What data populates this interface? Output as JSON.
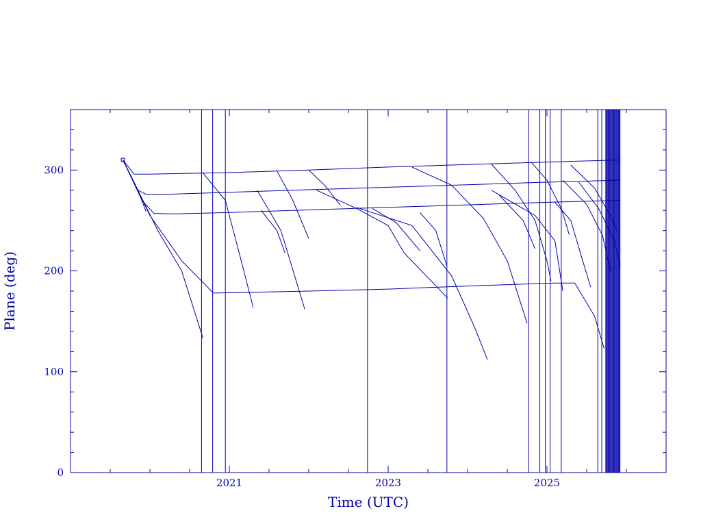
{
  "chart_data": {
    "type": "line",
    "title": "",
    "xlabel": "Time (UTC)",
    "ylabel": "Plane (deg)",
    "xlim": [
      2019.0,
      2026.5
    ],
    "ylim": [
      0,
      360
    ],
    "x_ticks": [
      {
        "value": 2021,
        "label": "2021"
      },
      {
        "value": 2023,
        "label": "2023"
      },
      {
        "value": 2025,
        "label": "2025"
      }
    ],
    "y_ticks": [
      {
        "value": 0,
        "label": "0"
      },
      {
        "value": 100,
        "label": "100"
      },
      {
        "value": 200,
        "label": "200"
      },
      {
        "value": 300,
        "label": "300"
      }
    ],
    "grid": false,
    "legend": "none",
    "color": "#0000aa",
    "vertical_lines": [
      2020.65,
      2020.79,
      2020.95,
      2022.74,
      2023.74,
      2024.77,
      2024.91,
      2024.98,
      2025.04,
      2025.18,
      2025.64,
      2025.69,
      2025.74,
      2025.75,
      2025.76,
      2025.77,
      2025.78,
      2025.79,
      2025.8,
      2025.81,
      2025.82,
      2025.83,
      2025.84,
      2025.85,
      2025.86,
      2025.87,
      2025.88,
      2025.89,
      2025.9,
      2025.91,
      2025.92
    ],
    "series": [
      {
        "points": [
          [
            2019.66,
            310
          ],
          [
            2019.8,
            296
          ],
          [
            2020.0,
            296
          ],
          [
            2021.0,
            297.5
          ],
          [
            2022.0,
            300
          ],
          [
            2023.0,
            303
          ],
          [
            2024.0,
            305.5
          ],
          [
            2025.0,
            308
          ],
          [
            2025.92,
            310
          ]
        ]
      },
      {
        "points": [
          [
            2019.66,
            310
          ],
          [
            2019.85,
            280
          ],
          [
            2019.95,
            276
          ],
          [
            2020.2,
            276
          ],
          [
            2021.0,
            278
          ],
          [
            2022.0,
            280.5
          ],
          [
            2023.0,
            283
          ],
          [
            2024.0,
            285.5
          ],
          [
            2025.0,
            288
          ],
          [
            2025.92,
            290
          ]
        ]
      },
      {
        "points": [
          [
            2019.66,
            310
          ],
          [
            2019.9,
            270
          ],
          [
            2020.05,
            257
          ],
          [
            2020.3,
            256.5
          ],
          [
            2021.0,
            258
          ],
          [
            2022.0,
            260.5
          ],
          [
            2023.0,
            263
          ],
          [
            2024.0,
            265.5
          ],
          [
            2025.0,
            268
          ],
          [
            2025.92,
            270
          ]
        ]
      },
      {
        "points": [
          [
            2019.66,
            310
          ],
          [
            2020.0,
            255
          ],
          [
            2020.4,
            210
          ],
          [
            2020.8,
            178
          ],
          [
            2022.0,
            180
          ],
          [
            2023.0,
            182
          ],
          [
            2024.0,
            185
          ],
          [
            2025.1,
            188
          ],
          [
            2025.35,
            188
          ],
          [
            2025.6,
            155
          ],
          [
            2025.72,
            123
          ]
        ]
      },
      {
        "points": [
          [
            2019.66,
            310
          ],
          [
            2019.85,
            280
          ],
          [
            2019.95,
            259
          ]
        ]
      },
      {
        "points": [
          [
            2019.66,
            310
          ],
          [
            2020.1,
            240
          ],
          [
            2020.4,
            200
          ],
          [
            2020.67,
            133
          ]
        ]
      },
      {
        "points": [
          [
            2020.67,
            297
          ],
          [
            2020.95,
            270
          ],
          [
            2021.15,
            210
          ],
          [
            2021.3,
            164
          ]
        ]
      },
      {
        "points": [
          [
            2021.35,
            280
          ],
          [
            2021.65,
            240
          ],
          [
            2021.95,
            162
          ]
        ]
      },
      {
        "points": [
          [
            2021.6,
            299
          ],
          [
            2021.8,
            270
          ],
          [
            2022.0,
            232
          ]
        ]
      },
      {
        "points": [
          [
            2021.4,
            260
          ],
          [
            2021.6,
            240
          ],
          [
            2021.7,
            218
          ]
        ]
      },
      {
        "points": [
          [
            2022.0,
            300
          ],
          [
            2022.2,
            285
          ],
          [
            2022.4,
            265
          ]
        ]
      },
      {
        "points": [
          [
            2022.1,
            280
          ],
          [
            2022.6,
            262
          ],
          [
            2023.0,
            245
          ],
          [
            2023.2,
            218
          ],
          [
            2023.75,
            173
          ]
        ]
      },
      {
        "points": [
          [
            2023.3,
            303
          ],
          [
            2023.8,
            285
          ],
          [
            2024.2,
            252
          ],
          [
            2024.5,
            210
          ],
          [
            2024.75,
            148
          ]
        ]
      },
      {
        "points": [
          [
            2022.6,
            263
          ],
          [
            2023.3,
            245
          ],
          [
            2023.8,
            195
          ],
          [
            2024.1,
            142
          ],
          [
            2024.25,
            112
          ]
        ]
      },
      {
        "points": [
          [
            2024.3,
            306
          ],
          [
            2024.6,
            280
          ],
          [
            2024.85,
            250
          ],
          [
            2025.0,
            210
          ],
          [
            2025.05,
            190
          ]
        ]
      },
      {
        "points": [
          [
            2024.3,
            280
          ],
          [
            2024.85,
            255
          ],
          [
            2025.1,
            230
          ],
          [
            2025.2,
            180
          ]
        ]
      },
      {
        "points": [
          [
            2024.8,
            308
          ],
          [
            2025.0,
            290
          ],
          [
            2025.18,
            262
          ],
          [
            2025.28,
            236
          ]
        ]
      },
      {
        "points": [
          [
            2025.1,
            268
          ],
          [
            2025.3,
            250
          ],
          [
            2025.45,
            210
          ],
          [
            2025.55,
            184
          ]
        ]
      },
      {
        "points": [
          [
            2025.3,
            305
          ],
          [
            2025.6,
            282
          ],
          [
            2025.8,
            255
          ],
          [
            2025.88,
            240
          ]
        ]
      },
      {
        "points": [
          [
            2025.4,
            288
          ],
          [
            2025.65,
            262
          ],
          [
            2025.85,
            230
          ],
          [
            2025.92,
            205
          ]
        ]
      },
      {
        "points": [
          [
            2025.2,
            290
          ],
          [
            2025.5,
            266
          ],
          [
            2025.7,
            235
          ],
          [
            2025.8,
            200
          ]
        ]
      },
      {
        "points": [
          [
            2023.4,
            258
          ],
          [
            2023.6,
            240
          ],
          [
            2023.74,
            205
          ]
        ]
      },
      {
        "points": [
          [
            2022.8,
            262
          ],
          [
            2023.1,
            248
          ],
          [
            2023.4,
            220
          ]
        ]
      },
      {
        "points": [
          [
            2024.4,
            275
          ],
          [
            2024.7,
            250
          ],
          [
            2024.85,
            222
          ]
        ]
      }
    ]
  }
}
